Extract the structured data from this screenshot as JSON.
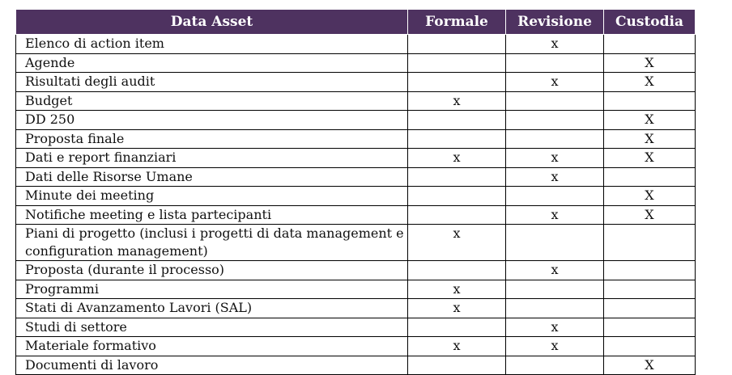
{
  "table": {
    "headers": [
      "Data Asset",
      "Formale",
      "Revisione",
      "Custodia"
    ],
    "rows": [
      {
        "asset": "Elenco di action item",
        "formale": "",
        "revisione": "x",
        "custodia": ""
      },
      {
        "asset": "Agende",
        "formale": "",
        "revisione": "",
        "custodia": "X"
      },
      {
        "asset": "Risultati degli audit",
        "formale": "",
        "revisione": "x",
        "custodia": "X"
      },
      {
        "asset": "Budget",
        "formale": "x",
        "revisione": "",
        "custodia": ""
      },
      {
        "asset": "DD 250",
        "formale": "",
        "revisione": "",
        "custodia": "X"
      },
      {
        "asset": "Proposta finale",
        "formale": "",
        "revisione": "",
        "custodia": "X"
      },
      {
        "asset": "Dati e report finanziari",
        "formale": "x",
        "revisione": "x",
        "custodia": "X"
      },
      {
        "asset": "Dati delle Risorse Umane",
        "formale": "",
        "revisione": "x",
        "custodia": ""
      },
      {
        "asset": "Minute dei meeting",
        "formale": "",
        "revisione": "",
        "custodia": "X"
      },
      {
        "asset": "Notifiche meeting e lista partecipanti",
        "formale": "",
        "revisione": "x",
        "custodia": "X"
      },
      {
        "asset": "Piani di progetto (inclusi i progetti di data management e configuration management)",
        "formale": "x",
        "revisione": "",
        "custodia": ""
      },
      {
        "asset": "Proposta (durante il processo)",
        "formale": "",
        "revisione": "x",
        "custodia": ""
      },
      {
        "asset": "Programmi",
        "formale": "x",
        "revisione": "",
        "custodia": ""
      },
      {
        "asset": "Stati di Avanzamento Lavori (SAL)",
        "formale": "x",
        "revisione": "",
        "custodia": ""
      },
      {
        "asset": "Studi di settore",
        "formale": "",
        "revisione": "x",
        "custodia": ""
      },
      {
        "asset": "Materiale formativo",
        "formale": "x",
        "revisione": "x",
        "custodia": ""
      },
      {
        "asset": "Documenti di lavoro",
        "formale": "",
        "revisione": "",
        "custodia": "X"
      }
    ]
  },
  "colors": {
    "header_background": "#4e3260",
    "header_text": "#ffffff",
    "grid_lines": "#000000"
  }
}
